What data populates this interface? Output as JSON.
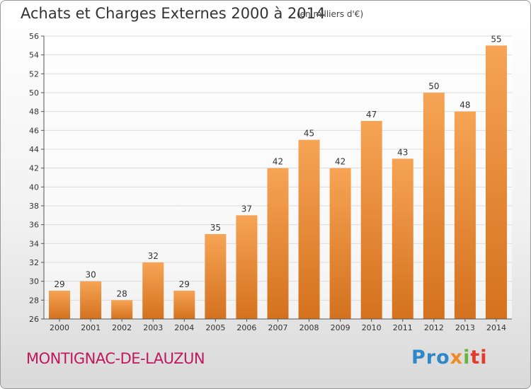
{
  "header": {
    "title": "Achats et Charges Externes 2000 à 2014",
    "subtitle": "(en milliers d'€)"
  },
  "footer": {
    "commune": "MONTIGNAC-DE-LAUZUN",
    "logo": [
      "Pro",
      "x",
      "i",
      "ti"
    ]
  },
  "colors": {
    "bar_top": "#f6a455",
    "bar_bottom": "#d4711e",
    "commune": "#c0185e",
    "grid": "#dcdcdc"
  },
  "chart_data": {
    "type": "bar",
    "title": "Achats et Charges Externes 2000 à 2014",
    "subtitle": "(en milliers d'€)",
    "categories": [
      "2000",
      "2001",
      "2002",
      "2003",
      "2004",
      "2005",
      "2006",
      "2007",
      "2008",
      "2009",
      "2010",
      "2011",
      "2012",
      "2013",
      "2014"
    ],
    "values": [
      29,
      30,
      28,
      32,
      29,
      35,
      37,
      42,
      45,
      42,
      47,
      43,
      50,
      48,
      55
    ],
    "data_labels": [
      "29",
      "30",
      "28",
      "32",
      "29",
      "35",
      "37",
      "42",
      "45",
      "42",
      "47",
      "43",
      "50",
      "48",
      "55"
    ],
    "ylim": [
      26,
      56
    ],
    "yticks": [
      26,
      28,
      30,
      32,
      34,
      36,
      38,
      40,
      42,
      44,
      46,
      48,
      50,
      52,
      54,
      56
    ],
    "xlabel": "",
    "ylabel": "",
    "grid": true
  }
}
